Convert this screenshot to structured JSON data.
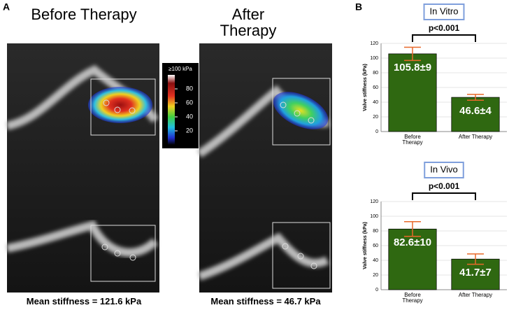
{
  "panel_a": {
    "label": "A",
    "images": [
      {
        "title": "Before Therapy",
        "caption": "Mean stiffness = 121.6 kPa"
      },
      {
        "title": "After Therapy",
        "caption": "Mean stiffness = 46.7 kPa"
      }
    ],
    "colorbar": {
      "label": "≥100 kPa",
      "lim": [
        0,
        100
      ],
      "ticks": [
        80,
        60,
        40,
        20
      ]
    }
  },
  "panel_b": {
    "label": "B"
  },
  "chart_data": [
    {
      "type": "bar",
      "title": "In Vitro",
      "annotation": "p<0.001",
      "y_label": "Valve stiffness (kPa)",
      "categories": [
        "Before Therapy",
        "After Therapy"
      ],
      "series": [
        {
          "color": "#2f6811",
          "values": [
            105.8,
            46.6
          ],
          "errors": [
            9,
            4
          ],
          "value_labels": [
            "105.8±9",
            "46.6±4"
          ]
        }
      ],
      "ylim": [
        0,
        120
      ],
      "yticks": [
        0,
        20,
        40,
        60,
        80,
        100,
        120
      ],
      "grid": true
    },
    {
      "type": "bar",
      "title": "In Vivo",
      "annotation": "p<0.001",
      "y_label": "Valve stiffness (kPa)",
      "categories": [
        "Before Therapy",
        "After Therapy"
      ],
      "series": [
        {
          "color": "#2f6811",
          "values": [
            82.6,
            41.7
          ],
          "errors": [
            10,
            7
          ],
          "value_labels": [
            "82.6±10",
            "41.7±7"
          ]
        }
      ],
      "ylim": [
        0,
        120
      ],
      "yticks": [
        0,
        20,
        40,
        60,
        80,
        100,
        120
      ],
      "grid": true
    }
  ]
}
